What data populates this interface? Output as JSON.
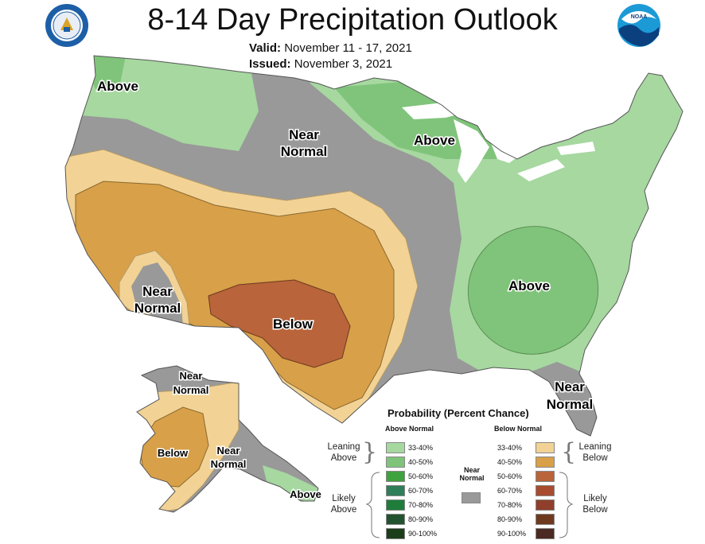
{
  "header": {
    "title": "8-14 Day Precipitation Outlook",
    "valid_label": "Valid:",
    "valid_value": "November 11 - 17, 2021",
    "issued_label": "Issued:",
    "issued_value": "November 3, 2021"
  },
  "logos": {
    "left": "department-of-commerce-seal",
    "right": "noaa-logo",
    "right_text": "NOAA"
  },
  "regions": {
    "nw_above": "Above",
    "north_near": [
      "Near",
      "Normal"
    ],
    "gl_above": "Above",
    "sw_near": [
      "Near",
      "Normal"
    ],
    "south_below": "Below",
    "se_above": "Above",
    "fl_near": [
      "Near",
      "Normal"
    ],
    "ak_near_top": [
      "Near",
      "Normal"
    ],
    "ak_below": "Below",
    "ak_near_se": [
      "Near",
      "Normal"
    ],
    "ak_above": "Above"
  },
  "legend": {
    "title": "Probability (Percent Chance)",
    "above_header": "Above Normal",
    "below_header": "Below Normal",
    "near_label": [
      "Near",
      "Normal"
    ],
    "leaning_above": [
      "Leaning",
      "Above"
    ],
    "likely_above": [
      "Likely",
      "Above"
    ],
    "leaning_below": [
      "Leaning",
      "Below"
    ],
    "likely_below": [
      "Likely",
      "Below"
    ],
    "above": [
      {
        "range": "33-40%",
        "color": "#a6d8a0"
      },
      {
        "range": "40-50%",
        "color": "#7fc47a"
      },
      {
        "range": "50-60%",
        "color": "#3ea23e"
      },
      {
        "range": "60-70%",
        "color": "#2e7e5a"
      },
      {
        "range": "70-80%",
        "color": "#1e7d3a"
      },
      {
        "range": "80-90%",
        "color": "#235230"
      },
      {
        "range": "90-100%",
        "color": "#1b3d1a"
      }
    ],
    "below": [
      {
        "range": "33-40%",
        "color": "#f2d395"
      },
      {
        "range": "40-50%",
        "color": "#d8a048"
      },
      {
        "range": "50-60%",
        "color": "#b9643a"
      },
      {
        "range": "60-70%",
        "color": "#a84c30"
      },
      {
        "range": "70-80%",
        "color": "#8f3f2c"
      },
      {
        "range": "80-90%",
        "color": "#6e3a1f"
      },
      {
        "range": "90-100%",
        "color": "#4a2a22"
      }
    ],
    "near_color": "#999999"
  },
  "colors": {
    "above_33": "#a6d8a0",
    "above_40": "#7fc47a",
    "below_33": "#f2d395",
    "below_40": "#d8a048",
    "below_50": "#b9643a",
    "near": "#999999"
  }
}
